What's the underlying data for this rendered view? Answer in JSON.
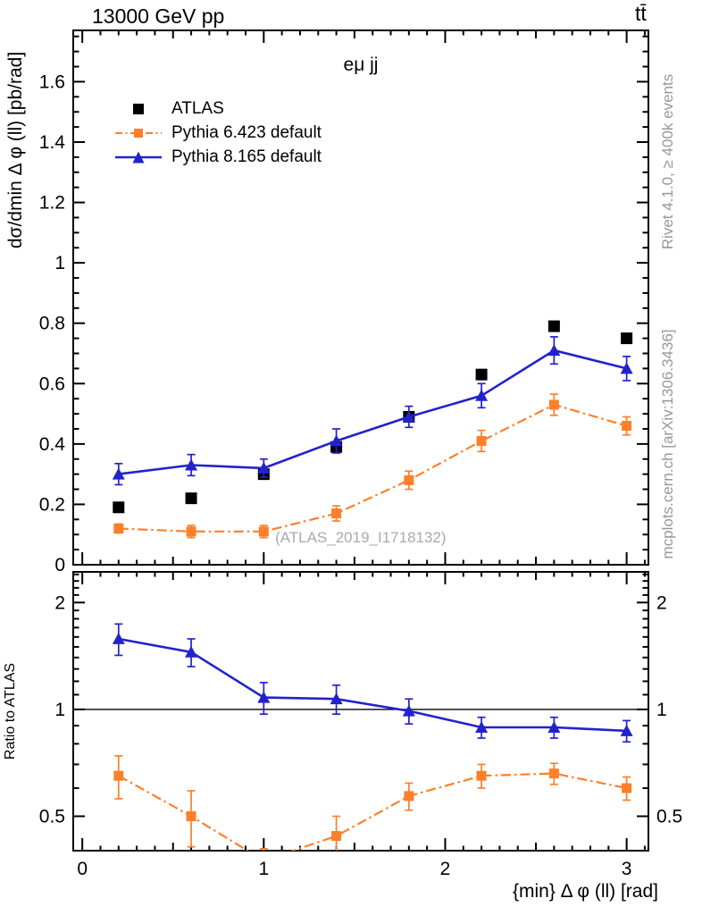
{
  "header": {
    "beam_label": "13000 GeV pp",
    "process_label": "tt̄"
  },
  "margin_texts": {
    "rivet": "Rivet 4.1.0, ≥ 400k events",
    "mcplots": "mcplots.cern.ch [arXiv:1306.3436]"
  },
  "main_panel": {
    "title": "eμ jj",
    "ylabel": "dσ/dmin Δ φ (ll) [pb/rad]",
    "watermark": "(ATLAS_2019_I1718132)"
  },
  "ratio_panel": {
    "ylabel": "Ratio to ATLAS"
  },
  "x_axis": {
    "label": "{min} Δ φ (ll) [rad]",
    "tick_values": [
      0,
      1,
      2,
      3
    ],
    "tick_labels": [
      "0",
      "1",
      "2",
      "3"
    ]
  },
  "colors": {
    "atlas": "#000000",
    "pythia6": "#ff7f2a",
    "pythia8": "#2222cd",
    "gray_text": "#989898",
    "watermark": "#aaaaaa",
    "frame": "#000000"
  },
  "legend": {
    "items": [
      {
        "label": "ATLAS"
      },
      {
        "label": "Pythia 6.423 default"
      },
      {
        "label": "Pythia 8.165 default"
      }
    ]
  },
  "chart_data": [
    {
      "type": "scatter",
      "panel": "main",
      "title": "eμ jj",
      "xlabel": "{min} Δ φ (ll) [rad]",
      "ylabel": "dσ/dmin Δ φ (ll) [pb/rad]",
      "xlim": [
        -0.05,
        3.12
      ],
      "ylim": [
        0,
        1.77
      ],
      "yscale": "linear",
      "ytick_values": [
        0,
        0.2,
        0.4,
        0.6,
        0.8,
        1,
        1.2,
        1.4,
        1.6
      ],
      "ytick_labels": [
        "0",
        "0.2",
        "0.4",
        "0.6",
        "0.8",
        "1",
        "1.2",
        "1.4",
        "1.6"
      ],
      "x": [
        0.2,
        0.6,
        1.0,
        1.4,
        1.8,
        2.2,
        2.6,
        3.0
      ],
      "series": [
        {
          "id": "atlas",
          "name": "ATLAS",
          "color": "#000000",
          "marker": "square",
          "marker_size": 13,
          "line": "none",
          "values": [
            0.19,
            0.22,
            0.3,
            0.39,
            0.49,
            0.63,
            0.79,
            0.75
          ],
          "errors": [
            0,
            0,
            0,
            0,
            0,
            0,
            0,
            0
          ]
        },
        {
          "id": "pythia6",
          "name": "Pythia 6.423 default",
          "color": "#ff7f2a",
          "marker": "square",
          "marker_size": 11,
          "line": "dashdot",
          "values": [
            0.12,
            0.11,
            0.11,
            0.17,
            0.28,
            0.41,
            0.53,
            0.46
          ],
          "errors": [
            0.015,
            0.02,
            0.02,
            0.025,
            0.03,
            0.035,
            0.035,
            0.03
          ]
        },
        {
          "id": "pythia8",
          "name": "Pythia 8.165 default",
          "color": "#2222cd",
          "marker": "triangle",
          "marker_size": 14,
          "line": "solid",
          "values": [
            0.3,
            0.33,
            0.32,
            0.41,
            0.49,
            0.56,
            0.71,
            0.65
          ],
          "errors": [
            0.035,
            0.035,
            0.03,
            0.04,
            0.035,
            0.04,
            0.045,
            0.04
          ]
        }
      ]
    },
    {
      "type": "scatter",
      "panel": "ratio",
      "ylabel": "Ratio to ATLAS",
      "yscale": "log",
      "ylim": [
        0.4,
        2.44
      ],
      "ytick_values": [
        0.5,
        1,
        2
      ],
      "ytick_labels": [
        "0.5",
        "1",
        "2"
      ],
      "reference_line": 1,
      "x": [
        0.2,
        0.6,
        1.0,
        1.4,
        1.8,
        2.2,
        2.6,
        3.0
      ],
      "series": [
        {
          "id": "pythia6",
          "name": "Pythia 6.423 default",
          "color": "#ff7f2a",
          "marker": "square",
          "marker_size": 11,
          "line": "dashdot",
          "values": [
            0.65,
            0.5,
            0.375,
            0.44,
            0.57,
            0.65,
            0.66,
            0.6
          ],
          "errors": [
            0.09,
            0.09,
            0.03,
            0.06,
            0.05,
            0.05,
            0.045,
            0.045
          ]
        },
        {
          "id": "pythia8",
          "name": "Pythia 8.165 default",
          "color": "#2222cd",
          "marker": "triangle",
          "marker_size": 14,
          "line": "solid",
          "values": [
            1.58,
            1.45,
            1.08,
            1.07,
            0.99,
            0.89,
            0.89,
            0.87
          ],
          "errors": [
            0.16,
            0.13,
            0.11,
            0.1,
            0.08,
            0.06,
            0.06,
            0.06
          ]
        }
      ]
    }
  ]
}
